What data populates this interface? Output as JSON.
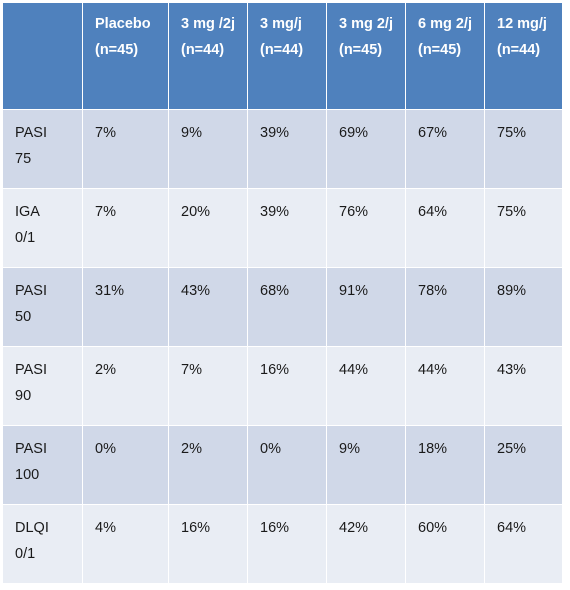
{
  "table": {
    "headers": [
      "",
      "Placebo (n=45)",
      "3 mg /2j (n=44)",
      "3 mg/j (n=44)",
      "3 mg 2/j (n=45)",
      "6 mg 2/j (n=45)",
      "12 mg/j (n=44)"
    ],
    "rows": [
      {
        "label": "PASI 75",
        "values": [
          "7%",
          "9%",
          "39%",
          "69%",
          "67%",
          "75%"
        ]
      },
      {
        "label": "IGA 0/1",
        "values": [
          "7%",
          "20%",
          "39%",
          "76%",
          "64%",
          "75%"
        ]
      },
      {
        "label": "PASI 50",
        "values": [
          "31%",
          "43%",
          "68%",
          "91%",
          "78%",
          "89%"
        ]
      },
      {
        "label": "PASI 90",
        "values": [
          "2%",
          "7%",
          "16%",
          "44%",
          "44%",
          "43%"
        ]
      },
      {
        "label": "PASI 100",
        "values": [
          "0%",
          "2%",
          "0%",
          "9%",
          "18%",
          "25%"
        ]
      },
      {
        "label": "DLQI 0/1",
        "values": [
          "4%",
          "16%",
          "16%",
          "42%",
          "60%",
          "64%"
        ]
      }
    ]
  },
  "colors": {
    "header_bg": "#4f81bd",
    "row_odd_bg": "#d0d8e8",
    "row_even_bg": "#e9edf4"
  }
}
